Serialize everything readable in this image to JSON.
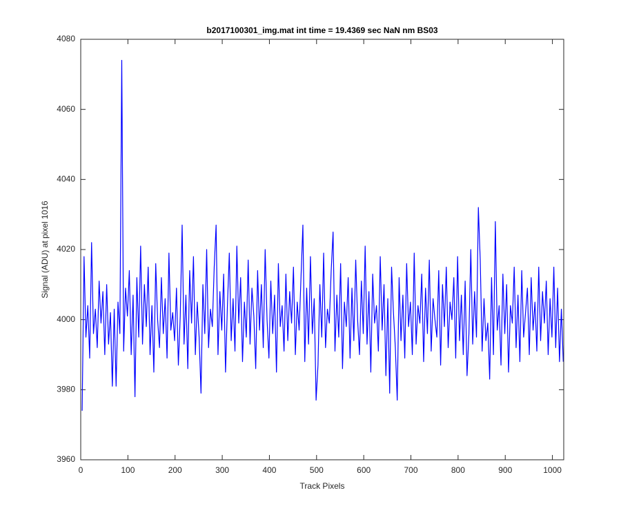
{
  "chart_data": {
    "type": "line",
    "title": "b2017100301_img.mat int time = 19.4369 sec  NaN nm BS03",
    "xlabel": "Track Pixels",
    "ylabel": "Signal (ADU) at pixel 1016",
    "xlim": [
      0,
      1024
    ],
    "ylim": [
      3960,
      4080
    ],
    "xticks": [
      0,
      100,
      200,
      300,
      400,
      500,
      600,
      700,
      800,
      900,
      1000
    ],
    "yticks": [
      3960,
      3980,
      4000,
      4020,
      4040,
      4060,
      4080
    ],
    "grid": false,
    "x": [
      3,
      7,
      11,
      15,
      19,
      23,
      27,
      31,
      35,
      39,
      43,
      47,
      51,
      55,
      59,
      63,
      67,
      71,
      75,
      79,
      83,
      87,
      91,
      95,
      99,
      103,
      107,
      111,
      115,
      119,
      123,
      127,
      131,
      135,
      139,
      143,
      147,
      151,
      155,
      159,
      163,
      167,
      171,
      175,
      179,
      183,
      187,
      191,
      195,
      199,
      203,
      207,
      211,
      215,
      219,
      223,
      227,
      231,
      235,
      239,
      243,
      247,
      251,
      255,
      259,
      263,
      267,
      271,
      275,
      279,
      283,
      287,
      291,
      295,
      299,
      303,
      307,
      311,
      315,
      319,
      323,
      327,
      331,
      335,
      339,
      343,
      347,
      351,
      355,
      359,
      363,
      367,
      371,
      375,
      379,
      383,
      387,
      391,
      395,
      399,
      403,
      407,
      411,
      415,
      419,
      423,
      427,
      431,
      435,
      439,
      443,
      447,
      451,
      455,
      459,
      463,
      467,
      471,
      475,
      479,
      483,
      487,
      491,
      495,
      499,
      503,
      507,
      511,
      515,
      519,
      523,
      527,
      531,
      535,
      539,
      543,
      547,
      551,
      555,
      559,
      563,
      567,
      571,
      575,
      579,
      583,
      587,
      591,
      595,
      599,
      603,
      607,
      611,
      615,
      619,
      623,
      627,
      631,
      635,
      639,
      643,
      647,
      651,
      655,
      659,
      663,
      667,
      671,
      675,
      679,
      683,
      687,
      691,
      695,
      699,
      703,
      707,
      711,
      715,
      719,
      723,
      727,
      731,
      735,
      739,
      743,
      747,
      751,
      755,
      759,
      763,
      767,
      771,
      775,
      779,
      783,
      787,
      791,
      795,
      799,
      803,
      807,
      811,
      815,
      819,
      823,
      827,
      831,
      835,
      839,
      843,
      847,
      851,
      855,
      859,
      863,
      867,
      871,
      875,
      879,
      883,
      887,
      891,
      895,
      899,
      903,
      907,
      911,
      915,
      919,
      923,
      927,
      931,
      935,
      939,
      943,
      947,
      951,
      955,
      959,
      963,
      967,
      971,
      975,
      979,
      983,
      987,
      991,
      995,
      999,
      1003,
      1007,
      1011,
      1015,
      1019,
      1023
    ],
    "series": [
      {
        "color": "#0000ff",
        "values": [
          3974,
          4018,
          3995,
          4004,
          3989,
          4022,
          3996,
          4003,
          3992,
          4011,
          3999,
          4008,
          3990,
          4010,
          3993,
          4002,
          3981,
          4003,
          3981,
          4005,
          3996,
          4074,
          3991,
          4009,
          4001,
          4014,
          3990,
          4007,
          3978,
          4012,
          3995,
          4021,
          3993,
          4010,
          3998,
          4015,
          3990,
          4004,
          3985,
          4016,
          4000,
          3992,
          4012,
          3996,
          4006,
          3989,
          4019,
          3997,
          4002,
          3994,
          4009,
          3987,
          4001,
          4027,
          3993,
          4007,
          3986,
          4014,
          3999,
          4018,
          3990,
          4005,
          3995,
          3979,
          4010,
          3996,
          4020,
          3992,
          4003,
          3998,
          4015,
          4027,
          3990,
          4008,
          3997,
          4013,
          3985,
          4004,
          4019,
          3994,
          4006,
          3991,
          4021,
          3999,
          4012,
          3988,
          4005,
          3995,
          4017,
          3993,
          4009,
          4001,
          3986,
          4014,
          3997,
          4010,
          3992,
          4020,
          4000,
          3989,
          4011,
          3996,
          4007,
          3985,
          4016,
          3998,
          4004,
          3991,
          4013,
          3994,
          4008,
          3999,
          4015,
          3990,
          4005,
          3997,
          4012,
          4027,
          3988,
          4009,
          3993,
          4018,
          3996,
          4006,
          3977,
          3987,
          4010,
          3995,
          4019,
          3992,
          4003,
          3999,
          4014,
          4025,
          3991,
          4007,
          3995,
          4016,
          3986,
          4005,
          3998,
          4012,
          3989,
          4009,
          3994,
          4017,
          4000,
          3990,
          4011,
          3996,
          4021,
          3993,
          4008,
          3985,
          4013,
          3999,
          4004,
          3991,
          4018,
          3997,
          4010,
          3984,
          4006,
          3979,
          4015,
          4002,
          3992,
          3977,
          4012,
          3994,
          4007,
          3989,
          4016,
          3998,
          4005,
          3990,
          4019,
          3993,
          4004,
          3999,
          4013,
          3988,
          4009,
          3996,
          4017,
          3991,
          4006,
          4000,
          3995,
          4014,
          3987,
          4010,
          3998,
          4015,
          3992,
          4005,
          4000,
          4012,
          3989,
          4018,
          3994,
          4007,
          3990,
          4011,
          3984,
          3996,
          4020,
          3993,
          4008,
          3995,
          4032,
          4017,
          3991,
          4006,
          3994,
          3999,
          3983,
          4012,
          3990,
          4028,
          3997,
          4004,
          3987,
          4013,
          3996,
          4010,
          3985,
          4004,
          3999,
          4015,
          3992,
          4007,
          3988,
          4014,
          3995,
          4002,
          4009,
          3990,
          4012,
          3997,
          4005,
          3991,
          4015,
          3994,
          4008,
          3999,
          4011,
          3990,
          4006,
          3995,
          4015,
          3992,
          4009,
          3988,
          4003,
          3988
        ]
      }
    ]
  }
}
